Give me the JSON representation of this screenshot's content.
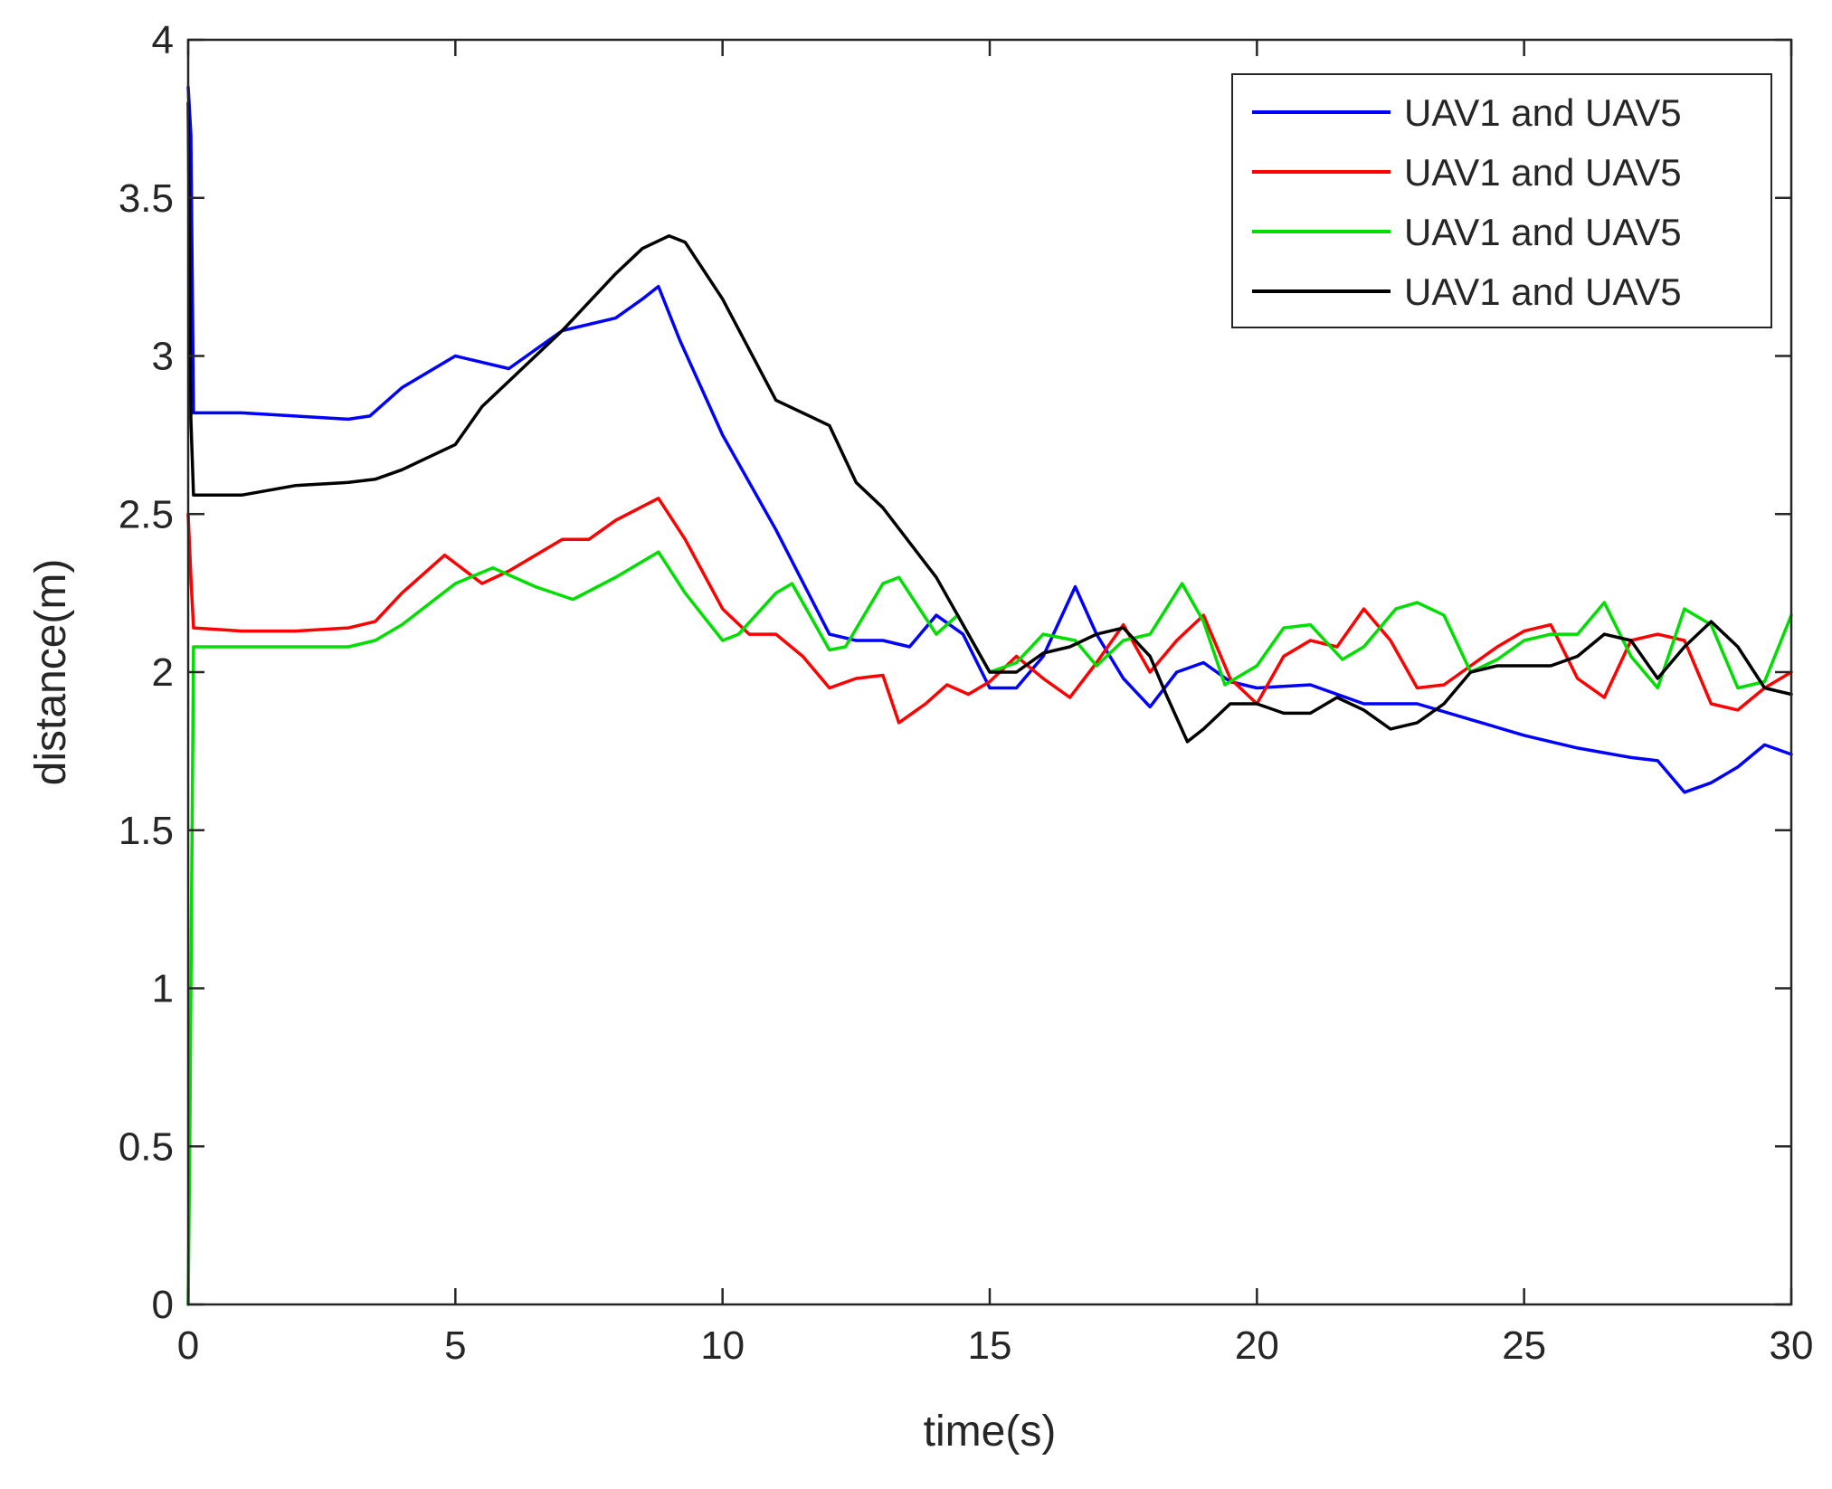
{
  "chart_data": {
    "type": "line",
    "title": "",
    "xlabel": "time(s)",
    "ylabel": "distance(m)",
    "xlim": [
      0,
      30
    ],
    "ylim": [
      0,
      4
    ],
    "xticks": [
      0,
      5,
      10,
      15,
      20,
      25,
      30
    ],
    "yticks": [
      0,
      0.5,
      1,
      1.5,
      2,
      2.5,
      3,
      3.5,
      4
    ],
    "xtick_labels": [
      "0",
      "5",
      "10",
      "15",
      "20",
      "25",
      "30"
    ],
    "ytick_labels": [
      "0",
      "0.5",
      "1",
      "1.5",
      "2",
      "2.5",
      "3",
      "3.5",
      "4"
    ],
    "grid": false,
    "legend_position": "top-right",
    "series": [
      {
        "name": "UAV1 and UAV5",
        "color": "#0000ff",
        "x": [
          0,
          0.05,
          0.1,
          1,
          2,
          3,
          3.4,
          4,
          5,
          6,
          7,
          8,
          8.5,
          8.8,
          9.2,
          10,
          11,
          12,
          12.5,
          13,
          13.5,
          14,
          14.5,
          15,
          15.5,
          16,
          16.6,
          17,
          17.5,
          18,
          18.5,
          19,
          19.5,
          20,
          21,
          22,
          23,
          24,
          25,
          26,
          27,
          27.5,
          28,
          28.5,
          29,
          29.5,
          30
        ],
        "y": [
          3.85,
          3.7,
          2.82,
          2.82,
          2.81,
          2.8,
          2.81,
          2.9,
          3.0,
          2.96,
          3.08,
          3.12,
          3.18,
          3.22,
          3.05,
          2.75,
          2.45,
          2.12,
          2.1,
          2.1,
          2.08,
          2.18,
          2.12,
          1.95,
          1.95,
          2.05,
          2.27,
          2.12,
          1.98,
          1.89,
          2.0,
          2.03,
          1.97,
          1.95,
          1.96,
          1.9,
          1.9,
          1.85,
          1.8,
          1.76,
          1.73,
          1.72,
          1.62,
          1.65,
          1.7,
          1.77,
          1.74
        ]
      },
      {
        "name": "UAV1 and UAV5",
        "color": "#ff0000",
        "x": [
          0,
          0.05,
          0.1,
          1,
          2,
          3,
          3.5,
          4,
          4.8,
          5.5,
          6,
          7,
          7.5,
          8,
          8.8,
          9.3,
          10,
          10.5,
          11,
          11.5,
          12,
          12.5,
          13,
          13.3,
          13.8,
          14.2,
          14.6,
          15,
          15.5,
          16,
          16.5,
          17,
          17.5,
          18,
          18.5,
          19,
          19.5,
          20,
          20.5,
          21,
          21.5,
          22,
          22.5,
          23,
          23.5,
          24,
          24.5,
          25,
          25.5,
          26,
          26.5,
          27,
          27.5,
          28,
          28.5,
          29,
          29.5,
          30
        ],
        "y": [
          2.5,
          2.3,
          2.14,
          2.13,
          2.13,
          2.14,
          2.16,
          2.25,
          2.37,
          2.28,
          2.32,
          2.42,
          2.42,
          2.48,
          2.55,
          2.42,
          2.2,
          2.12,
          2.12,
          2.05,
          1.95,
          1.98,
          1.99,
          1.84,
          1.9,
          1.96,
          1.93,
          1.97,
          2.05,
          1.98,
          1.92,
          2.03,
          2.15,
          2.0,
          2.1,
          2.18,
          1.98,
          1.9,
          2.05,
          2.1,
          2.08,
          2.2,
          2.1,
          1.95,
          1.96,
          2.02,
          2.08,
          2.13,
          2.15,
          1.98,
          1.92,
          2.1,
          2.12,
          2.1,
          1.9,
          1.88,
          1.95,
          2.0
        ]
      },
      {
        "name": "UAV1 and UAV5",
        "color": "#00dd00",
        "x": [
          0,
          0.03,
          0.06,
          0.1,
          1,
          2,
          3,
          3.5,
          4,
          5,
          5.7,
          6.5,
          7.2,
          8,
          8.8,
          9.3,
          10,
          10.3,
          11,
          11.3,
          12,
          12.3,
          13,
          13.3,
          14,
          14.4,
          15,
          15.5,
          16,
          16.6,
          17,
          17.5,
          18,
          18.6,
          19,
          19.4,
          20,
          20.5,
          21,
          21.6,
          22,
          22.6,
          23,
          23.5,
          24,
          24.5,
          25,
          25.5,
          26,
          26.5,
          27,
          27.5,
          28,
          28.5,
          29,
          29.5,
          30
        ],
        "y": [
          0,
          0.5,
          1.2,
          2.08,
          2.08,
          2.08,
          2.08,
          2.1,
          2.15,
          2.28,
          2.33,
          2.27,
          2.23,
          2.3,
          2.38,
          2.25,
          2.1,
          2.12,
          2.25,
          2.28,
          2.07,
          2.08,
          2.28,
          2.3,
          2.12,
          2.18,
          2.0,
          2.03,
          2.12,
          2.1,
          2.02,
          2.1,
          2.12,
          2.28,
          2.16,
          1.96,
          2.02,
          2.14,
          2.15,
          2.04,
          2.08,
          2.2,
          2.22,
          2.18,
          2.0,
          2.04,
          2.1,
          2.12,
          2.12,
          2.22,
          2.05,
          1.95,
          2.2,
          2.15,
          1.95,
          1.97,
          2.18
        ]
      },
      {
        "name": "UAV1 and UAV5",
        "color": "#000000",
        "x": [
          0,
          0.05,
          0.1,
          1,
          2,
          3,
          3.5,
          4,
          5,
          5.5,
          6,
          7,
          8,
          8.5,
          9,
          9.3,
          10,
          11,
          12,
          12.5,
          13,
          14,
          14.5,
          15,
          15.5,
          16,
          16.5,
          17,
          17.5,
          18,
          18.3,
          18.7,
          19,
          19.5,
          20,
          20.5,
          21,
          21.5,
          22,
          22.5,
          23,
          23.5,
          24,
          24.5,
          25,
          25.5,
          26,
          26.5,
          27,
          27.5,
          28,
          28.5,
          29,
          29.5,
          30
        ],
        "y": [
          3.8,
          2.8,
          2.56,
          2.56,
          2.59,
          2.6,
          2.61,
          2.64,
          2.72,
          2.84,
          2.92,
          3.08,
          3.26,
          3.34,
          3.38,
          3.36,
          3.18,
          2.86,
          2.78,
          2.6,
          2.52,
          2.3,
          2.15,
          2.0,
          2.0,
          2.06,
          2.08,
          2.12,
          2.14,
          2.05,
          1.93,
          1.78,
          1.82,
          1.9,
          1.9,
          1.87,
          1.87,
          1.92,
          1.88,
          1.82,
          1.84,
          1.9,
          2.0,
          2.02,
          2.02,
          2.02,
          2.05,
          2.12,
          2.1,
          1.98,
          2.08,
          2.16,
          2.08,
          1.95,
          1.93
        ]
      }
    ]
  }
}
